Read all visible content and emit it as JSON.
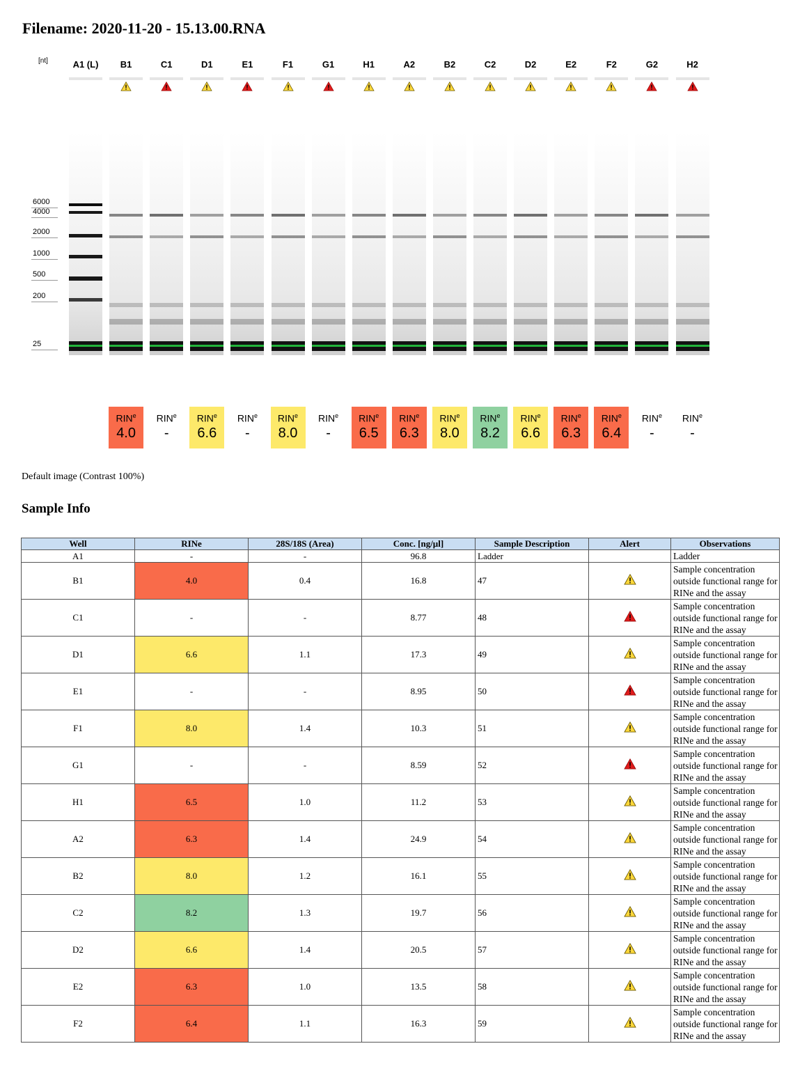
{
  "filename": "Filename: 2020-11-20 - 15.13.00.RNA",
  "gel": {
    "unit_label": "[nt]",
    "markers": [
      "6000",
      "4000",
      "2000",
      "1000",
      "500",
      "200",
      "25"
    ],
    "lanes": [
      {
        "label": "A1 (L)",
        "alert": "none"
      },
      {
        "label": "B1",
        "alert": "warning"
      },
      {
        "label": "C1",
        "alert": "error"
      },
      {
        "label": "D1",
        "alert": "warning"
      },
      {
        "label": "E1",
        "alert": "error"
      },
      {
        "label": "F1",
        "alert": "warning"
      },
      {
        "label": "G1",
        "alert": "error"
      },
      {
        "label": "H1",
        "alert": "warning"
      },
      {
        "label": "A2",
        "alert": "warning"
      },
      {
        "label": "B2",
        "alert": "warning"
      },
      {
        "label": "C2",
        "alert": "warning"
      },
      {
        "label": "D2",
        "alert": "warning"
      },
      {
        "label": "E2",
        "alert": "warning"
      },
      {
        "label": "F2",
        "alert": "warning"
      },
      {
        "label": "G2",
        "alert": "error"
      },
      {
        "label": "H2",
        "alert": "error"
      }
    ],
    "rin_label": "RIN",
    "rin_sup": "e",
    "rin_values": [
      {
        "value": "4.0",
        "color": "#f96b4a"
      },
      {
        "value": "-",
        "color": "#ffffff"
      },
      {
        "value": "6.6",
        "color": "#fde96a"
      },
      {
        "value": "-",
        "color": "#ffffff"
      },
      {
        "value": "8.0",
        "color": "#fde96a"
      },
      {
        "value": "-",
        "color": "#ffffff"
      },
      {
        "value": "6.5",
        "color": "#f96b4a"
      },
      {
        "value": "6.3",
        "color": "#f96b4a"
      },
      {
        "value": "8.0",
        "color": "#fde96a"
      },
      {
        "value": "8.2",
        "color": "#8fd1a0"
      },
      {
        "value": "6.6",
        "color": "#fde96a"
      },
      {
        "value": "6.3",
        "color": "#f96b4a"
      },
      {
        "value": "6.4",
        "color": "#f96b4a"
      },
      {
        "value": "-",
        "color": "#ffffff"
      },
      {
        "value": "-",
        "color": "#ffffff"
      }
    ],
    "caption": "Default image (Contrast 100%)"
  },
  "sample_info": {
    "title": "Sample Info",
    "headers": [
      "Well",
      "RINe",
      "28S/18S (Area)",
      "Conc. [ng/µl]",
      "Sample Description",
      "Alert",
      "Observations"
    ],
    "rows": [
      {
        "well": "A1",
        "rine": "-",
        "ratio": "-",
        "conc": "96.8",
        "desc": "Ladder",
        "alert": "none",
        "obs": "Ladder",
        "color": "#ffffff"
      },
      {
        "well": "B1",
        "rine": "4.0",
        "ratio": "0.4",
        "conc": "16.8",
        "desc": "47",
        "alert": "warning",
        "obs": "Sample concentration outside functional range for RINe and the assay",
        "color": "#f96b4a"
      },
      {
        "well": "C1",
        "rine": "-",
        "ratio": "-",
        "conc": "8.77",
        "desc": "48",
        "alert": "error",
        "obs": "Sample concentration outside functional range for RINe and the assay",
        "color": "#ffffff"
      },
      {
        "well": "D1",
        "rine": "6.6",
        "ratio": "1.1",
        "conc": "17.3",
        "desc": "49",
        "alert": "warning",
        "obs": "Sample concentration outside functional range for RINe and the assay",
        "color": "#fde96a"
      },
      {
        "well": "E1",
        "rine": "-",
        "ratio": "-",
        "conc": "8.95",
        "desc": "50",
        "alert": "error",
        "obs": "Sample concentration outside functional range for RINe and the assay",
        "color": "#ffffff"
      },
      {
        "well": "F1",
        "rine": "8.0",
        "ratio": "1.4",
        "conc": "10.3",
        "desc": "51",
        "alert": "warning",
        "obs": "Sample concentration outside functional range for RINe and the assay",
        "color": "#fde96a"
      },
      {
        "well": "G1",
        "rine": "-",
        "ratio": "-",
        "conc": "8.59",
        "desc": "52",
        "alert": "error",
        "obs": "Sample concentration outside functional range for RINe and the assay",
        "color": "#ffffff"
      },
      {
        "well": "H1",
        "rine": "6.5",
        "ratio": "1.0",
        "conc": "11.2",
        "desc": "53",
        "alert": "warning",
        "obs": "Sample concentration outside functional range for RINe and the assay",
        "color": "#f96b4a"
      },
      {
        "well": "A2",
        "rine": "6.3",
        "ratio": "1.4",
        "conc": "24.9",
        "desc": "54",
        "alert": "warning",
        "obs": "Sample concentration outside functional range for RINe and the assay",
        "color": "#f96b4a"
      },
      {
        "well": "B2",
        "rine": "8.0",
        "ratio": "1.2",
        "conc": "16.1",
        "desc": "55",
        "alert": "warning",
        "obs": "Sample concentration outside functional range for RINe and the assay",
        "color": "#fde96a"
      },
      {
        "well": "C2",
        "rine": "8.2",
        "ratio": "1.3",
        "conc": "19.7",
        "desc": "56",
        "alert": "warning",
        "obs": "Sample concentration outside functional range for RINe and the assay",
        "color": "#8fd1a0"
      },
      {
        "well": "D2",
        "rine": "6.6",
        "ratio": "1.4",
        "conc": "20.5",
        "desc": "57",
        "alert": "warning",
        "obs": "Sample concentration outside functional range for RINe and the assay",
        "color": "#fde96a"
      },
      {
        "well": "E2",
        "rine": "6.3",
        "ratio": "1.0",
        "conc": "13.5",
        "desc": "58",
        "alert": "warning",
        "obs": "Sample concentration outside functional range for RINe and the assay",
        "color": "#f96b4a"
      },
      {
        "well": "F2",
        "rine": "6.4",
        "ratio": "1.1",
        "conc": "16.3",
        "desc": "59",
        "alert": "warning",
        "obs": "Sample concentration outside functional range for RINe and the assay",
        "color": "#f96b4a"
      }
    ]
  }
}
